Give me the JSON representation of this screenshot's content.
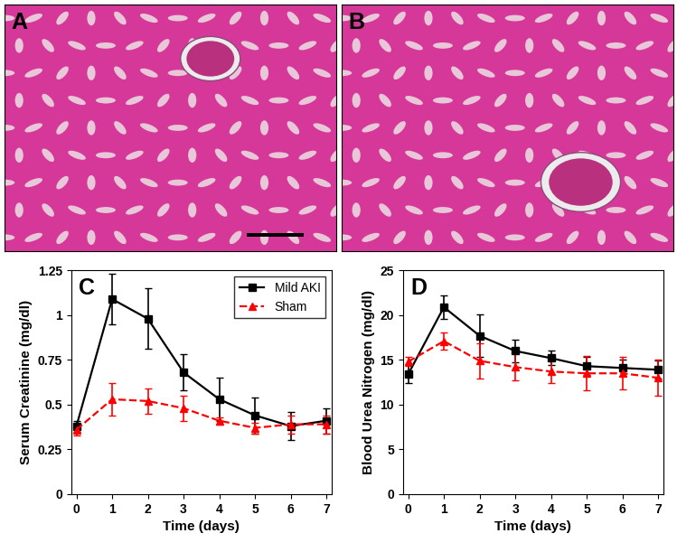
{
  "images": [
    {
      "label": "A"
    },
    {
      "label": "B"
    }
  ],
  "chart_data": [
    {
      "type": "line",
      "title": "C",
      "x_label": "Time (days)",
      "y_label": "Serum Creatinine (mg/dl)",
      "x": [
        0,
        1,
        2,
        3,
        4,
        5,
        6,
        7
      ],
      "xlim": [
        -0.15,
        7.15
      ],
      "xticks": [
        0,
        1,
        2,
        3,
        4,
        5,
        6,
        7
      ],
      "ylim": [
        0,
        1.25
      ],
      "yticks": [
        0,
        0.25,
        0.5,
        0.75,
        1,
        1.25
      ],
      "legend": "upper right",
      "series": [
        {
          "name": "Mild AKI",
          "color": "#000000",
          "marker": "square",
          "line_style": "solid",
          "values": [
            0.38,
            1.09,
            0.98,
            0.68,
            0.53,
            0.44,
            0.38,
            0.41
          ],
          "error": [
            0.03,
            0.14,
            0.17,
            0.1,
            0.12,
            0.1,
            0.08,
            0.07
          ]
        },
        {
          "name": "Sham",
          "color": "#ff0000",
          "marker": "triangle",
          "line_style": "dashed",
          "values": [
            0.36,
            0.53,
            0.52,
            0.48,
            0.41,
            0.37,
            0.39,
            0.39
          ],
          "error": [
            0.03,
            0.09,
            0.07,
            0.07,
            0.02,
            0.03,
            0.05,
            0.05
          ]
        }
      ]
    },
    {
      "type": "line",
      "title": "D",
      "x_label": "Time (days)",
      "y_label": "Blood Urea Nitrogen (mg/dl)",
      "x": [
        0,
        1,
        2,
        3,
        4,
        5,
        6,
        7
      ],
      "xlim": [
        -0.15,
        7.15
      ],
      "xticks": [
        0,
        1,
        2,
        3,
        4,
        5,
        6,
        7
      ],
      "ylim": [
        0,
        25
      ],
      "yticks": [
        0,
        5,
        10,
        15,
        20,
        25
      ],
      "series": [
        {
          "name": "Mild AKI",
          "color": "#000000",
          "marker": "square",
          "line_style": "solid",
          "values": [
            13.4,
            20.9,
            17.7,
            16.0,
            15.2,
            14.3,
            14.1,
            13.9
          ],
          "error": [
            1.0,
            1.3,
            2.4,
            1.3,
            0.8,
            1.0,
            0.9,
            1.0
          ]
        },
        {
          "name": "Sham",
          "color": "#ff0000",
          "marker": "triangle",
          "line_style": "dashed",
          "values": [
            14.8,
            17.1,
            14.9,
            14.2,
            13.7,
            13.5,
            13.5,
            13.0
          ],
          "error": [
            0.5,
            1.0,
            2.0,
            1.5,
            1.3,
            1.9,
            1.8,
            2.0
          ]
        }
      ]
    }
  ]
}
